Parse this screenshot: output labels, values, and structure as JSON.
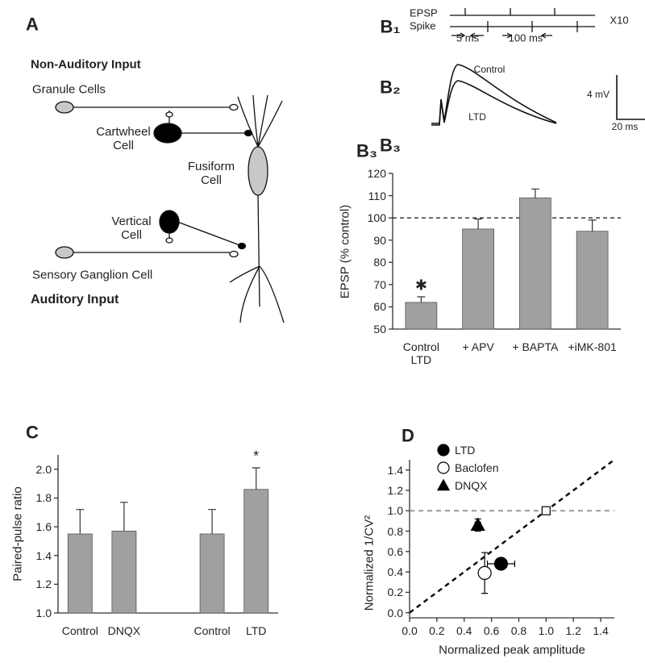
{
  "panels": {
    "A": "A",
    "B1": "B₁",
    "B2": "B₂",
    "B3": "B₃"
  },
  "diagram": {
    "non_auditory": "Non-Auditory Input",
    "granule": "Granule Cells",
    "cartwheel": "Cartwheel Cell",
    "fusiform": "Fusiform Cell",
    "vertical": "Vertical Cell",
    "ganglion": "Sensory Ganglion Cell",
    "auditory": "Auditory Input"
  },
  "protocol": {
    "epsp": "EPSP",
    "spike": "Spike",
    "interval_short": "5 ms",
    "interval_long": "100 ms",
    "repeats": "X10"
  },
  "traces": {
    "control": "Control",
    "ltd": "LTD",
    "scale_y": "4 mV",
    "scale_x": "20 ms"
  },
  "chart_data": [
    {
      "type": "bar",
      "panel": "B₃",
      "ylabel": "EPSP (% control)",
      "categories": [
        "Control LTD",
        "+ APV",
        "+ BAPTA",
        "+iMK-801"
      ],
      "values": [
        62,
        95,
        109,
        94
      ],
      "errors": [
        2.5,
        4.5,
        4,
        5
      ],
      "significance": [
        "✱",
        null,
        null,
        null
      ],
      "color": "#a0a0a0",
      "ylim": [
        50,
        120
      ],
      "yticks": [
        50,
        60,
        70,
        80,
        90,
        100,
        110,
        120
      ],
      "reference_line": 100
    },
    {
      "type": "bar",
      "panel": "C",
      "ylabel": "Paired-pulse ratio",
      "categories": [
        "Control",
        "DNQX",
        null,
        "Control",
        "LTD"
      ],
      "values": [
        1.55,
        1.57,
        null,
        1.55,
        1.86
      ],
      "errors": [
        0.17,
        0.2,
        null,
        0.17,
        0.15
      ],
      "significance": [
        null,
        null,
        null,
        null,
        "*"
      ],
      "color": "#a0a0a0",
      "ylim": [
        1.0,
        2.1
      ],
      "yticks": [
        {
          "value": 1,
          "label": "1.0"
        },
        1.2,
        1.4,
        1.6,
        1.8,
        {
          "value": 2,
          "label": "2.0"
        }
      ]
    },
    {
      "type": "scatter",
      "panel": "D",
      "xlabel": "Normalized peak amplitude",
      "ylabel": "Normalized 1/CV²",
      "series": [
        {
          "name": "LTD",
          "marker": "filled-circle",
          "color": "#000000",
          "x": [
            0.67
          ],
          "y": [
            0.48
          ],
          "xerr": [
            0.1
          ],
          "yerr": [
            0.05
          ]
        },
        {
          "name": "Baclofen",
          "marker": "open-circle",
          "color": "#000000",
          "x": [
            0.55
          ],
          "y": [
            0.39
          ],
          "xerr": [
            0.04
          ],
          "yerr": [
            0.2
          ]
        },
        {
          "name": "DNQX",
          "marker": "triangle",
          "color": "#000000",
          "x": [
            0.5
          ],
          "y": [
            0.86
          ],
          "xerr": [
            0.02
          ],
          "yerr": [
            0.06
          ]
        }
      ],
      "reference_point": {
        "x": 1,
        "y": 1
      },
      "reference_line": 1,
      "identity_line": true,
      "xlim": [
        0,
        1.5
      ],
      "ylim": [
        -0.05,
        1.5
      ],
      "xticks": [
        {
          "value": 0,
          "label": "0.0"
        },
        0.2,
        0.4,
        0.6,
        0.8,
        {
          "value": 1,
          "label": "1.0"
        },
        1.2,
        1.4
      ],
      "yticks": [
        {
          "value": 0,
          "label": "0.0"
        },
        0.2,
        0.4,
        0.6,
        0.8,
        {
          "value": 1,
          "label": "1.0"
        },
        1.2,
        1.4
      ]
    }
  ]
}
